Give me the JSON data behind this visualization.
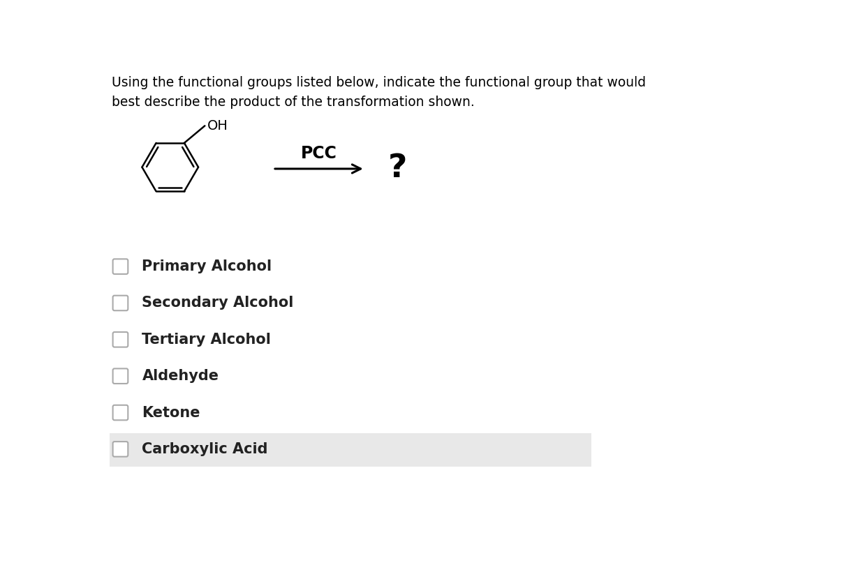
{
  "title_text": "Using the functional groups listed below, indicate the functional group that would\nbest describe the product of the transformation shown.",
  "reagent": "PCC",
  "question_mark": "?",
  "options": [
    "Primary Alcohol",
    "Secondary Alcohol",
    "Tertiary Alcohol",
    "Aldehyde",
    "Ketone",
    "Carboxylic Acid"
  ],
  "last_option_bg": "#e8e8e8",
  "bg_color": "#ffffff",
  "text_color": "#000000",
  "font_size_title": 13.5,
  "font_size_options": 15,
  "font_size_reagent": 17,
  "font_size_question": 28,
  "font_size_oh": 14,
  "checkbox_color": "#aaaaaa",
  "checkbox_size": 22
}
